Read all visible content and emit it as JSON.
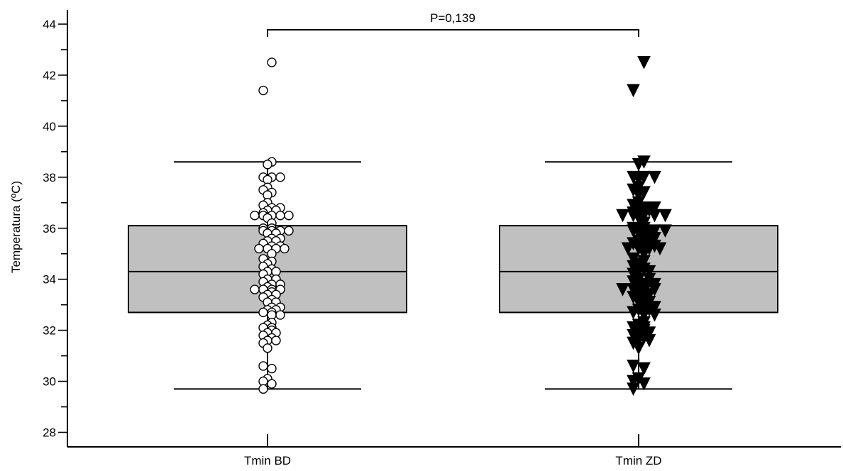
{
  "chart_data": {
    "type": "box",
    "ylabel": "Temperatura (ºC)",
    "xlabel": "",
    "ylim": [
      27.3,
      44.6
    ],
    "yticks": [
      28,
      30,
      32,
      34,
      36,
      38,
      40,
      42,
      44
    ],
    "yticks_labels": [
      "28",
      "30",
      "32",
      "34",
      "36",
      "38",
      "40",
      "42",
      "44"
    ],
    "categories": [
      "Tmin BD",
      "Tmin ZD"
    ],
    "comparison_label": "P=0,139",
    "box_fill_color": "#c0c0c0",
    "series": [
      {
        "name": "Tmin BD",
        "marker": "circle-open",
        "whisker_low": 29.7,
        "q1": 32.7,
        "median": 34.3,
        "q3": 36.1,
        "whisker_high": 38.6,
        "points": [
          42.5,
          41.4,
          38.6,
          38.5,
          38.0,
          38.0,
          38.0,
          37.9,
          37.6,
          37.5,
          37.4,
          37.3,
          37.0,
          36.9,
          36.8,
          36.8,
          36.7,
          36.7,
          36.6,
          36.5,
          36.5,
          36.5,
          36.5,
          36.5,
          36.4,
          36.2,
          36.0,
          36.0,
          35.9,
          35.9,
          35.9,
          35.9,
          35.8,
          35.8,
          35.6,
          35.6,
          35.5,
          35.5,
          35.4,
          35.3,
          35.3,
          35.2,
          35.2,
          35.2,
          35.2,
          35.0,
          34.8,
          34.7,
          34.6,
          34.5,
          34.4,
          34.3,
          34.3,
          34.2,
          34.0,
          34.0,
          33.9,
          33.8,
          33.8,
          33.7,
          33.6,
          33.6,
          33.6,
          33.6,
          33.5,
          33.4,
          33.4,
          33.3,
          33.2,
          33.1,
          33.1,
          32.9,
          32.9,
          32.8,
          32.8,
          32.7,
          32.7,
          32.6,
          32.6,
          32.3,
          32.2,
          32.1,
          32.1,
          32.0,
          31.9,
          31.9,
          31.8,
          31.7,
          31.6,
          31.6,
          31.5,
          31.3,
          30.6,
          30.5,
          30.1,
          30.0,
          29.9,
          29.7
        ]
      },
      {
        "name": "Tmin ZD",
        "marker": "triangle-down-filled",
        "whisker_low": 29.7,
        "q1": 32.7,
        "median": 34.3,
        "q3": 36.1,
        "whisker_high": 38.6,
        "points": [
          42.5,
          41.4,
          38.6,
          38.5,
          38.0,
          38.0,
          38.0,
          37.9,
          37.6,
          37.5,
          37.4,
          37.3,
          37.0,
          36.9,
          36.8,
          36.8,
          36.7,
          36.7,
          36.6,
          36.5,
          36.5,
          36.5,
          36.5,
          36.5,
          36.4,
          36.2,
          36.0,
          36.0,
          35.9,
          35.9,
          35.9,
          35.9,
          35.8,
          35.8,
          35.6,
          35.6,
          35.5,
          35.5,
          35.4,
          35.3,
          35.3,
          35.2,
          35.2,
          35.2,
          35.2,
          35.0,
          34.8,
          34.7,
          34.6,
          34.5,
          34.4,
          34.3,
          34.3,
          34.2,
          34.0,
          34.0,
          33.9,
          33.8,
          33.8,
          33.7,
          33.6,
          33.6,
          33.6,
          33.6,
          33.5,
          33.4,
          33.4,
          33.3,
          33.2,
          33.1,
          33.1,
          32.9,
          32.9,
          32.8,
          32.8,
          32.7,
          32.7,
          32.6,
          32.6,
          32.3,
          32.2,
          32.1,
          32.1,
          32.0,
          31.9,
          31.9,
          31.8,
          31.7,
          31.6,
          31.6,
          31.5,
          31.3,
          30.6,
          30.5,
          30.1,
          30.0,
          29.9,
          29.7
        ]
      }
    ]
  }
}
